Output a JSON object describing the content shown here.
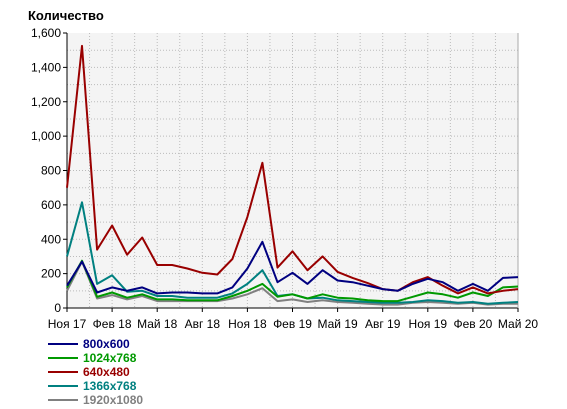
{
  "chart_data": {
    "type": "line",
    "title": "",
    "ylabel": "Количество",
    "xlabel": "",
    "ylim": [
      0,
      1600
    ],
    "yticks": [
      "0",
      "200",
      "400",
      "600",
      "800",
      "1,000",
      "1,200",
      "1,400",
      "1,600"
    ],
    "ytick_values": [
      0,
      200,
      400,
      600,
      800,
      1000,
      1200,
      1400,
      1600
    ],
    "x": [
      "2017-11",
      "2017-12",
      "2018-01",
      "2018-02",
      "2018-03",
      "2018-04",
      "2018-05",
      "2018-06",
      "2018-07",
      "2018-08",
      "2018-09",
      "2018-10",
      "2018-11",
      "2018-12",
      "2019-01",
      "2019-02",
      "2019-03",
      "2019-04",
      "2019-05",
      "2019-06",
      "2019-07",
      "2019-08",
      "2019-09",
      "2019-10",
      "2019-11",
      "2019-12",
      "2020-01",
      "2020-02",
      "2020-03",
      "2020-04",
      "2020-05"
    ],
    "xtick_labels": [
      {
        "x": "2017-11",
        "label": "Ноя 17"
      },
      {
        "x": "2018-02",
        "label": "Фев 18"
      },
      {
        "x": "2018-05",
        "label": "Май 18"
      },
      {
        "x": "2018-08",
        "label": "Авг 18"
      },
      {
        "x": "2018-11",
        "label": "Ноя 18"
      },
      {
        "x": "2019-02",
        "label": "Фев 19"
      },
      {
        "x": "2019-05",
        "label": "Май 19"
      },
      {
        "x": "2019-08",
        "label": "Авг 19"
      },
      {
        "x": "2019-11",
        "label": "Ноя 19"
      },
      {
        "x": "2020-02",
        "label": "Фев 20"
      },
      {
        "x": "2020-05",
        "label": "Май 20"
      }
    ],
    "grid": true,
    "legend_position": "bottom-left",
    "series": [
      {
        "name": "800x600",
        "color": "#000080",
        "values": [
          130,
          270,
          90,
          120,
          100,
          120,
          85,
          90,
          90,
          85,
          85,
          120,
          230,
          385,
          150,
          205,
          140,
          220,
          160,
          150,
          130,
          110,
          100,
          140,
          170,
          150,
          100,
          140,
          100,
          175,
          180
        ]
      },
      {
        "name": "1024x768",
        "color": "#009900",
        "values": [
          120,
          275,
          65,
          90,
          60,
          80,
          50,
          50,
          45,
          45,
          45,
          70,
          100,
          140,
          65,
          80,
          55,
          80,
          60,
          55,
          45,
          40,
          40,
          65,
          90,
          80,
          60,
          90,
          70,
          120,
          125
        ]
      },
      {
        "name": "640x480",
        "color": "#990000",
        "values": [
          700,
          1525,
          340,
          480,
          310,
          410,
          250,
          250,
          230,
          205,
          195,
          285,
          530,
          845,
          235,
          330,
          220,
          300,
          210,
          175,
          145,
          110,
          100,
          150,
          180,
          130,
          85,
          120,
          85,
          100,
          110
        ]
      },
      {
        "name": "1366x768",
        "color": "#008080",
        "values": [
          300,
          615,
          140,
          190,
          95,
          100,
          70,
          70,
          60,
          60,
          60,
          85,
          140,
          220,
          70,
          80,
          55,
          60,
          45,
          40,
          35,
          30,
          30,
          35,
          45,
          40,
          30,
          35,
          25,
          30,
          35
        ]
      },
      {
        "name": "1920x1080",
        "color": "#808080",
        "values": [
          100,
          270,
          55,
          75,
          50,
          70,
          40,
          40,
          40,
          40,
          40,
          55,
          80,
          115,
          40,
          50,
          35,
          45,
          35,
          30,
          25,
          20,
          20,
          30,
          35,
          30,
          25,
          30,
          20,
          25,
          25
        ]
      }
    ]
  }
}
